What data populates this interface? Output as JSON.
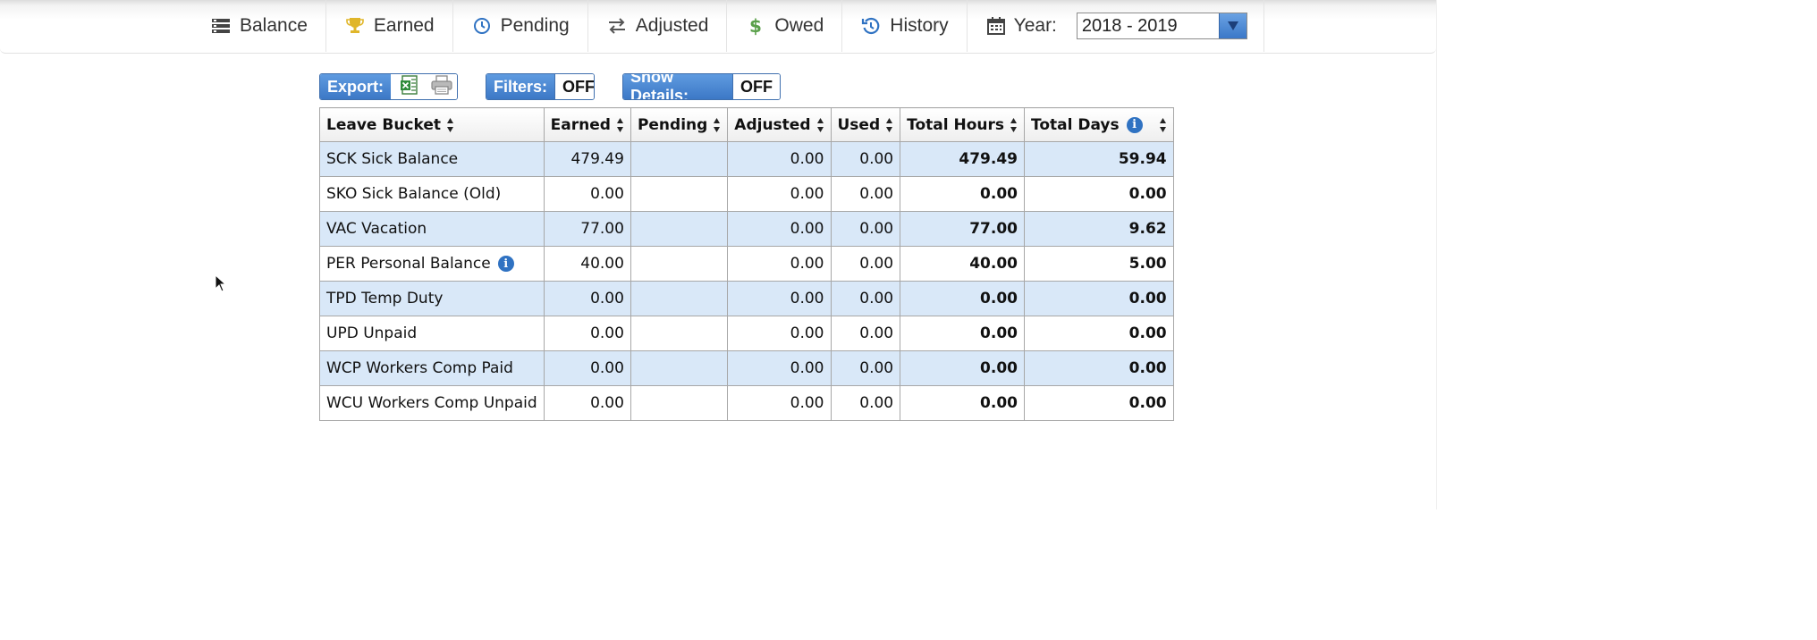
{
  "nav": {
    "items": [
      {
        "label": "Balance",
        "icon": "balance-stack-icon"
      },
      {
        "label": "Earned",
        "icon": "trophy-icon"
      },
      {
        "label": "Pending",
        "icon": "clock-icon"
      },
      {
        "label": "Adjusted",
        "icon": "swap-arrows-icon"
      },
      {
        "label": "Owed",
        "icon": "dollar-icon"
      },
      {
        "label": "History",
        "icon": "history-icon"
      }
    ],
    "year_label": "Year:",
    "year_value": "2018 - 2019"
  },
  "toolbar": {
    "export_label": "Export:",
    "filters_label": "Filters:",
    "filters_state": "OFF",
    "details_label": "Show Details:",
    "details_state": "OFF"
  },
  "table": {
    "headers": [
      "Leave Bucket",
      "Earned",
      "Pending",
      "Adjusted",
      "Used",
      "Total Hours",
      "Total Days"
    ],
    "rows": [
      {
        "bucket": "SCK Sick Balance",
        "earned": "479.49",
        "pending": "",
        "adjusted": "0.00",
        "used": "0.00",
        "total_hours": "479.49",
        "total_days": "59.94"
      },
      {
        "bucket": "SKO Sick Balance (Old)",
        "earned": "0.00",
        "pending": "",
        "adjusted": "0.00",
        "used": "0.00",
        "total_hours": "0.00",
        "total_days": "0.00"
      },
      {
        "bucket": "VAC Vacation",
        "earned": "77.00",
        "pending": "",
        "adjusted": "0.00",
        "used": "0.00",
        "total_hours": "77.00",
        "total_days": "9.62"
      },
      {
        "bucket": "PER Personal Balance",
        "earned": "40.00",
        "pending": "",
        "adjusted": "0.00",
        "used": "0.00",
        "total_hours": "40.00",
        "total_days": "5.00",
        "info": true
      },
      {
        "bucket": "TPD Temp Duty",
        "earned": "0.00",
        "pending": "",
        "adjusted": "0.00",
        "used": "0.00",
        "total_hours": "0.00",
        "total_days": "0.00"
      },
      {
        "bucket": "UPD Unpaid",
        "earned": "0.00",
        "pending": "",
        "adjusted": "0.00",
        "used": "0.00",
        "total_hours": "0.00",
        "total_days": "0.00"
      },
      {
        "bucket": "WCP Workers Comp Paid",
        "earned": "0.00",
        "pending": "",
        "adjusted": "0.00",
        "used": "0.00",
        "total_hours": "0.00",
        "total_days": "0.00"
      },
      {
        "bucket": "WCU Workers Comp Unpaid",
        "earned": "0.00",
        "pending": "",
        "adjusted": "0.00",
        "used": "0.00",
        "total_hours": "0.00",
        "total_days": "0.00"
      }
    ]
  },
  "colors": {
    "accent_blue": "#3c78c6",
    "row_alt": "#d9e8f8",
    "trophy_gold": "#e0b62a",
    "dollar_green": "#5aa04a"
  }
}
